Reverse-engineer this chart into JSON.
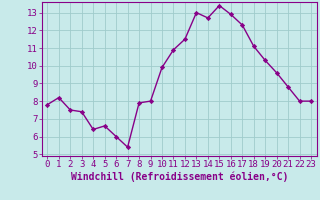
{
  "x": [
    0,
    1,
    2,
    3,
    4,
    5,
    6,
    7,
    8,
    9,
    10,
    11,
    12,
    13,
    14,
    15,
    16,
    17,
    18,
    19,
    20,
    21,
    22,
    23
  ],
  "y": [
    7.8,
    8.2,
    7.5,
    7.4,
    6.4,
    6.6,
    6.0,
    5.4,
    7.9,
    8.0,
    9.9,
    10.9,
    11.5,
    13.0,
    12.7,
    13.4,
    12.9,
    12.3,
    11.1,
    10.3,
    9.6,
    8.8,
    8.0,
    8.0
  ],
  "line_color": "#880088",
  "marker": "D",
  "marker_size": 2.2,
  "bg_color": "#c8eaea",
  "grid_color": "#a0cccc",
  "xlabel": "Windchill (Refroidissement éolien,°C)",
  "xlabel_color": "#880088",
  "tick_color": "#880088",
  "spine_color": "#880088",
  "ylim": [
    4.9,
    13.6
  ],
  "xlim": [
    -0.5,
    23.5
  ],
  "yticks": [
    5,
    6,
    7,
    8,
    9,
    10,
    11,
    12,
    13
  ],
  "xticks": [
    0,
    1,
    2,
    3,
    4,
    5,
    6,
    7,
    8,
    9,
    10,
    11,
    12,
    13,
    14,
    15,
    16,
    17,
    18,
    19,
    20,
    21,
    22,
    23
  ],
  "tick_fontsize": 6.5,
  "xlabel_fontsize": 7.0,
  "linewidth": 1.0
}
